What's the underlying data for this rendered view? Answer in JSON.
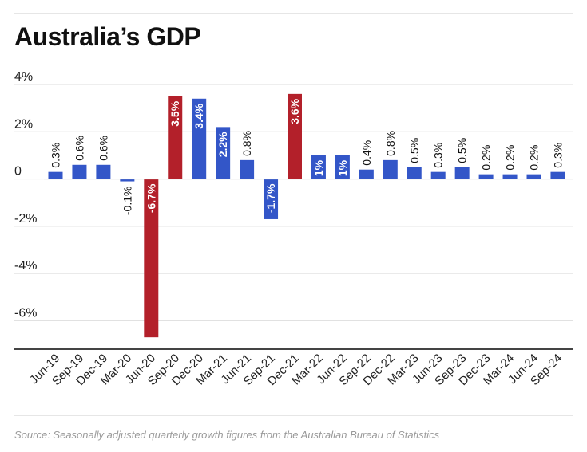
{
  "title": "Australia’s GDP",
  "source": "Source: Seasonally adjusted quarterly growth figures from the Australian Bureau of Statistics",
  "colors": {
    "normal": "#3356c8",
    "highlight": "#b3202a",
    "grid": "#dddddd",
    "axis": "#444444",
    "text": "#222222"
  },
  "chart_data": {
    "type": "bar",
    "title": "Australia’s GDP",
    "xlabel": "",
    "ylabel": "",
    "ylim": [
      -7.2,
      4
    ],
    "yticks": [
      {
        "value": 4,
        "label": "4%"
      },
      {
        "value": 2,
        "label": "2%"
      },
      {
        "value": 0,
        "label": "0"
      },
      {
        "value": -2,
        "label": "-2%"
      },
      {
        "value": -4,
        "label": "-4%"
      },
      {
        "value": -6,
        "label": "-6%"
      }
    ],
    "categories": [
      "Jun-19",
      "Sep-19",
      "Dec-19",
      "Mar-20",
      "Jun-20",
      "Sep-20",
      "Dec-20",
      "Mar-21",
      "Jun-21",
      "Sep-21",
      "Dec-21",
      "Mar-22",
      "Jun-22",
      "Sep-22",
      "Dec-22",
      "Mar-23",
      "Jun-23",
      "Sep-23",
      "Dec-23",
      "Mar-24",
      "Jun-24",
      "Sep-24"
    ],
    "values": [
      0.3,
      0.6,
      0.6,
      -0.1,
      -6.7,
      3.5,
      3.4,
      2.2,
      0.8,
      -1.7,
      3.6,
      1,
      1,
      0.4,
      0.8,
      0.5,
      0.3,
      0.5,
      0.2,
      0.2,
      0.2,
      0.3
    ],
    "labels": [
      "0.3%",
      "0.6%",
      "0.6%",
      "-0.1%",
      "-6.7%",
      "3.5%",
      "3.4%",
      "2.2%",
      "0.8%",
      "-1.7%",
      "3.6%",
      "1%",
      "1%",
      "0.4%",
      "0.8%",
      "0.5%",
      "0.3%",
      "0.5%",
      "0.2%",
      "0.2%",
      "0.2%",
      "0.3%"
    ],
    "highlighted": [
      false,
      false,
      false,
      false,
      true,
      true,
      false,
      false,
      false,
      false,
      true,
      false,
      false,
      false,
      false,
      false,
      false,
      false,
      false,
      false,
      false,
      false
    ],
    "grid": true
  }
}
